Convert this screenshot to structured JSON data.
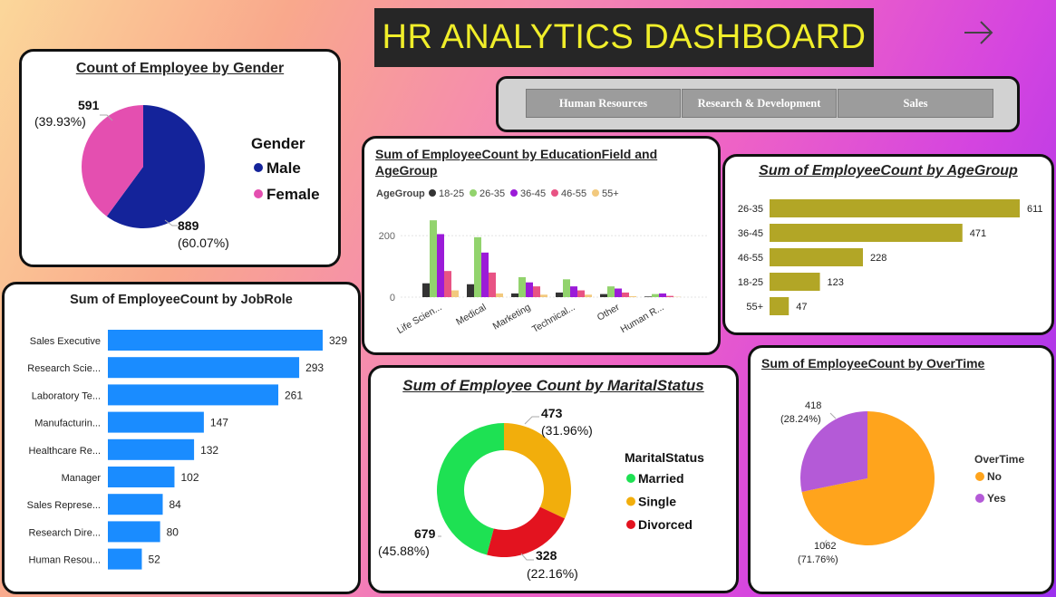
{
  "header": {
    "title": "HR ANALYTICS DASHBOARD"
  },
  "slicer": {
    "buttons": [
      "Human Resources",
      "Research & Development",
      "Sales"
    ]
  },
  "colors": {
    "male": "#14239a",
    "female": "#e44fb0",
    "bar_blue": "#1a8cff",
    "olive": "#b2a626",
    "married": "#1ee153",
    "single": "#f2ae0c",
    "divorced": "#e3131f",
    "no": "#ffa41c",
    "yes": "#b45ad7",
    "g1825": "#333333",
    "g2635": "#92d36d",
    "g3645": "#9b1bd8",
    "g4655": "#e85384",
    "g55": "#f2c97e"
  },
  "chart_data": [
    {
      "id": "gender",
      "type": "pie",
      "title": "Count of Employee by Gender",
      "legend_title": "Gender",
      "categories": [
        "Male",
        "Female"
      ],
      "values": [
        889,
        591
      ],
      "pct_labels": [
        "(60.07%)",
        "(39.93%)"
      ],
      "legend": "right"
    },
    {
      "id": "jobrole",
      "type": "bar",
      "orientation": "horizontal",
      "title": "Sum of EmployeeCount by JobRole",
      "categories": [
        "Sales Executive",
        "Research Scie...",
        "Laboratory Te...",
        "Manufacturin...",
        "Healthcare Re...",
        "Manager",
        "Sales Represe...",
        "Research Dire...",
        "Human Resou..."
      ],
      "values": [
        329,
        293,
        261,
        147,
        132,
        102,
        84,
        80,
        52
      ]
    },
    {
      "id": "education",
      "type": "bar",
      "orientation": "vertical",
      "title": "Sum of EmployeeCount by EducationField and AgeGroup",
      "legend_title": "AgeGroup",
      "categories": [
        "Life Scien...",
        "Medical",
        "Marketing",
        "Technical...",
        "Other",
        "Human R..."
      ],
      "series": [
        {
          "name": "18-25",
          "values": [
            45,
            42,
            12,
            15,
            10,
            2
          ]
        },
        {
          "name": "26-35",
          "values": [
            250,
            195,
            65,
            58,
            35,
            10
          ]
        },
        {
          "name": "36-45",
          "values": [
            205,
            145,
            48,
            35,
            28,
            12
          ]
        },
        {
          "name": "46-55",
          "values": [
            85,
            80,
            35,
            22,
            15,
            4
          ]
        },
        {
          "name": "55+",
          "values": [
            22,
            12,
            8,
            8,
            3,
            1
          ]
        }
      ],
      "y_ticks": [
        "0",
        "200"
      ],
      "ylim": [
        0,
        280
      ],
      "legend": "top"
    },
    {
      "id": "agegroup",
      "type": "bar",
      "orientation": "horizontal",
      "title": "Sum of EmployeeCount by AgeGroup",
      "categories": [
        "26-35",
        "36-45",
        "46-55",
        "18-25",
        "55+"
      ],
      "values": [
        611,
        471,
        228,
        123,
        47
      ]
    },
    {
      "id": "marital",
      "type": "pie",
      "donut": true,
      "title": "Sum of Employee Count by MaritalStatus",
      "legend_title": "MaritalStatus",
      "categories": [
        "Married",
        "Single",
        "Divorced"
      ],
      "values": [
        679,
        473,
        328
      ],
      "pct_labels": [
        "(45.88%)",
        "(31.96%)",
        "(22.16%)"
      ],
      "legend": "right"
    },
    {
      "id": "overtime",
      "type": "pie",
      "title": "Sum of EmployeeCount by OverTime",
      "legend_title": "OverTime",
      "categories": [
        "No",
        "Yes"
      ],
      "values": [
        1062,
        418
      ],
      "pct_labels": [
        "(71.76%)",
        "(28.24%)"
      ],
      "legend": "right"
    }
  ]
}
